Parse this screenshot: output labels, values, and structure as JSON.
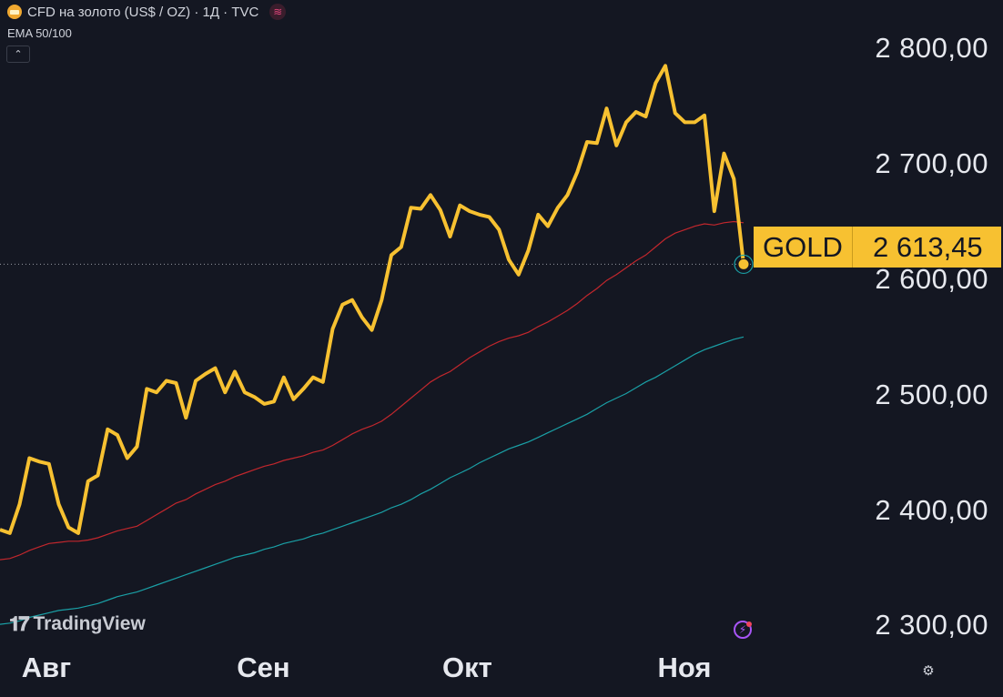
{
  "header": {
    "title": "CFD на золото (US$ / OZ) · 1Д · TVC",
    "indicator": "EMA 50/100",
    "collapse_icon": "chevron-up-icon"
  },
  "price_tag": {
    "symbol": "GOLD",
    "value": "2 613,45",
    "color": "#f7c131"
  },
  "branding": {
    "logo_text": "TradingView",
    "logo_mark": "TV"
  },
  "colors": {
    "background": "#141722",
    "price_line": "#f7c131",
    "ema50": "#c2272d",
    "ema100": "#1aa0a6"
  },
  "chart_data": {
    "type": "line",
    "y_ticks": [
      {
        "label": "2 800,00",
        "value": 2800
      },
      {
        "label": "2 700,00",
        "value": 2700
      },
      {
        "label": "2 600,00",
        "value": 2600
      },
      {
        "label": "2 500,00",
        "value": 2500
      },
      {
        "label": "2 400,00",
        "value": 2400
      },
      {
        "label": "2 300,00",
        "value": 2300
      }
    ],
    "ylim": [
      2238,
      2842
    ],
    "x_labels": [
      "Авг",
      "Сен",
      "Окт",
      "Ноя"
    ],
    "x_label_index": [
      5,
      27,
      48,
      70
    ],
    "x_count": 80,
    "grid": false,
    "series": [
      {
        "role": "price",
        "values": [
          2383,
          2380,
          2405,
          2445,
          2442,
          2440,
          2405,
          2385,
          2380,
          2425,
          2430,
          2470,
          2465,
          2445,
          2455,
          2505,
          2502,
          2512,
          2510,
          2480,
          2512,
          2518,
          2523,
          2502,
          2520,
          2502,
          2498,
          2492,
          2494,
          2515,
          2496,
          2505,
          2515,
          2511,
          2557,
          2578,
          2582,
          2567,
          2556,
          2582,
          2621,
          2628,
          2662,
          2661,
          2673,
          2660,
          2637,
          2664,
          2659,
          2656,
          2654,
          2643,
          2617,
          2604,
          2625,
          2656,
          2646,
          2662,
          2673,
          2693,
          2719,
          2718,
          2748,
          2716,
          2736,
          2745,
          2741,
          2770,
          2785,
          2744,
          2736,
          2736,
          2742,
          2659,
          2709,
          2687,
          2613
        ]
      },
      {
        "role": "ema50",
        "values": [
          2357,
          2358,
          2361,
          2365,
          2368,
          2371,
          2372,
          2373,
          2373,
          2374,
          2376,
          2379,
          2382,
          2384,
          2386,
          2391,
          2396,
          2401,
          2406,
          2409,
          2414,
          2418,
          2422,
          2425,
          2429,
          2432,
          2435,
          2438,
          2440,
          2443,
          2445,
          2447,
          2450,
          2452,
          2456,
          2461,
          2466,
          2470,
          2473,
          2477,
          2483,
          2490,
          2497,
          2504,
          2511,
          2516,
          2520,
          2526,
          2532,
          2537,
          2542,
          2546,
          2549,
          2551,
          2554,
          2559,
          2563,
          2568,
          2573,
          2579,
          2586,
          2592,
          2599,
          2604,
          2610,
          2616,
          2621,
          2628,
          2635,
          2640,
          2643,
          2646,
          2648,
          2647,
          2649,
          2650,
          2649
        ]
      },
      {
        "role": "ema100",
        "values": [
          2301,
          2302,
          2304,
          2307,
          2309,
          2311,
          2313,
          2314,
          2315,
          2317,
          2319,
          2322,
          2325,
          2327,
          2329,
          2332,
          2335,
          2338,
          2341,
          2344,
          2347,
          2350,
          2353,
          2356,
          2359,
          2361,
          2363,
          2366,
          2368,
          2371,
          2373,
          2375,
          2378,
          2380,
          2383,
          2386,
          2389,
          2392,
          2395,
          2398,
          2402,
          2405,
          2409,
          2414,
          2418,
          2423,
          2428,
          2432,
          2436,
          2441,
          2445,
          2449,
          2453,
          2456,
          2459,
          2463,
          2467,
          2471,
          2475,
          2479,
          2483,
          2488,
          2493,
          2497,
          2501,
          2506,
          2511,
          2515,
          2520,
          2525,
          2530,
          2535,
          2539,
          2542,
          2545,
          2548,
          2550
        ]
      }
    ]
  }
}
